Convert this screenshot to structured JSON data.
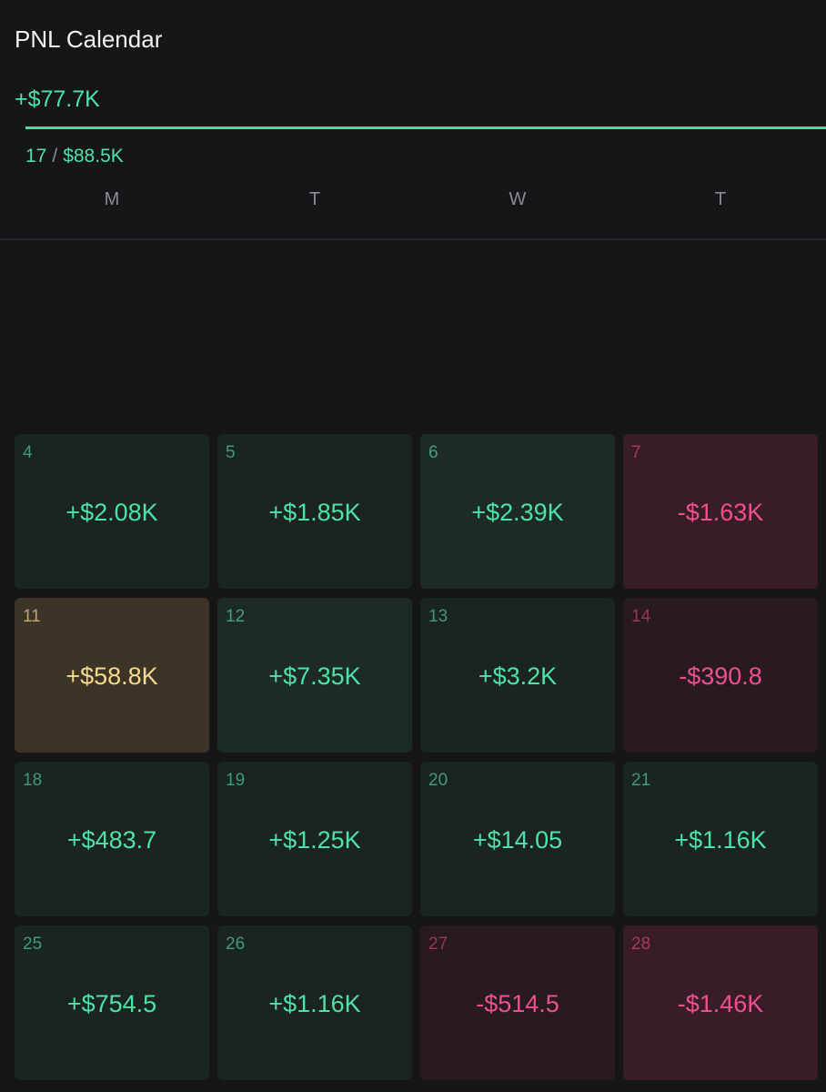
{
  "header": {
    "title": "PNL Calendar",
    "total": "+$77.7K",
    "stats": {
      "count": "17",
      "separator": "/",
      "amount": "$88.5K"
    }
  },
  "weekdays": [
    "M",
    "T",
    "W",
    "T"
  ],
  "cells": [
    {
      "day": "4",
      "value": "+$2.08K",
      "tone": "green"
    },
    {
      "day": "5",
      "value": "+$1.85K",
      "tone": "green"
    },
    {
      "day": "6",
      "value": "+$2.39K",
      "tone": "green-strong"
    },
    {
      "day": "7",
      "value": "-$1.63K",
      "tone": "red-strong"
    },
    {
      "day": "11",
      "value": "+$58.8K",
      "tone": "yellow"
    },
    {
      "day": "12",
      "value": "+$7.35K",
      "tone": "green-strong"
    },
    {
      "day": "13",
      "value": "+$3.2K",
      "tone": "green"
    },
    {
      "day": "14",
      "value": "-$390.8",
      "tone": "red"
    },
    {
      "day": "18",
      "value": "+$483.7",
      "tone": "green"
    },
    {
      "day": "19",
      "value": "+$1.25K",
      "tone": "green"
    },
    {
      "day": "20",
      "value": "+$14.05",
      "tone": "green"
    },
    {
      "day": "21",
      "value": "+$1.16K",
      "tone": "green"
    },
    {
      "day": "25",
      "value": "+$754.5",
      "tone": "green"
    },
    {
      "day": "26",
      "value": "+$1.16K",
      "tone": "green"
    },
    {
      "day": "27",
      "value": "-$514.5",
      "tone": "red"
    },
    {
      "day": "28",
      "value": "-$1.46K",
      "tone": "red-strong"
    }
  ]
}
